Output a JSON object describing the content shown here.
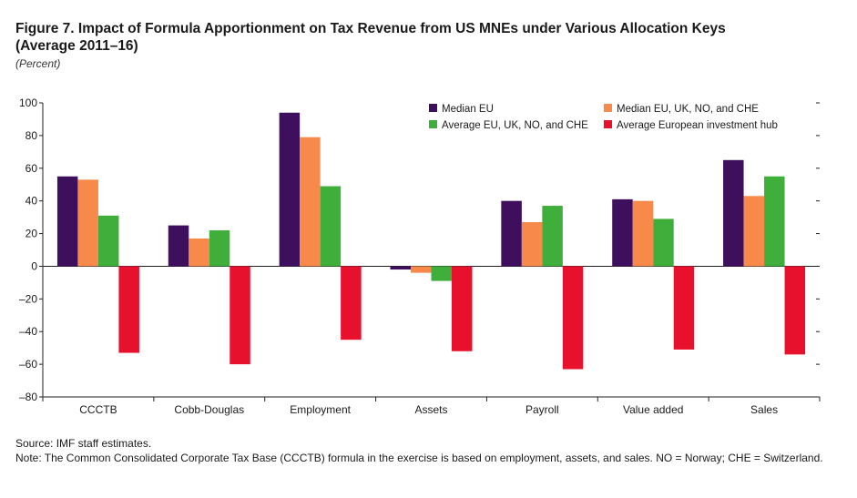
{
  "figure": {
    "title_line1": "Figure 7. Impact of Formula Apportionment on Tax Revenue from US MNEs under Various Allocation Keys",
    "title_line2": "(Average 2011–16)",
    "unit": "(Percent)",
    "source": "Source: IMF staff estimates.",
    "note": "Note: The Common Consolidated Corporate Tax Base (CCCTB) formula in the exercise is based on employment, assets, and sales. NO = Norway; CHE = Switzerland."
  },
  "chart_data": {
    "type": "bar",
    "categories": [
      "CCCTB",
      "Cobb-Douglas",
      "Employment",
      "Assets",
      "Payroll",
      "Value added",
      "Sales"
    ],
    "series": [
      {
        "name": "Median EU",
        "color": "#3d0f5c",
        "values": [
          55,
          25,
          94,
          -2,
          40,
          41,
          65
        ]
      },
      {
        "name": "Median EU, UK, NO, and CHE",
        "color": "#f7894a",
        "values": [
          53,
          17,
          79,
          -4,
          27,
          40,
          43
        ]
      },
      {
        "name": "Average EU, UK, NO, and CHE",
        "color": "#3fae3a",
        "values": [
          31,
          22,
          49,
          -9,
          37,
          29,
          55
        ]
      },
      {
        "name": "Average European investment hub",
        "color": "#e8112d",
        "values": [
          -53,
          -60,
          -45,
          -52,
          -63,
          -51,
          -54
        ]
      }
    ],
    "ylim": [
      -80,
      100
    ],
    "yticks": [
      100,
      80,
      60,
      40,
      20,
      0,
      -20,
      -40,
      -60,
      -80
    ],
    "ytick_labels": [
      "100",
      "80",
      "60",
      "40",
      "20",
      "0",
      "–20",
      "–40",
      "–60",
      "–80"
    ],
    "legend_placement": "top-right",
    "grid": false
  }
}
